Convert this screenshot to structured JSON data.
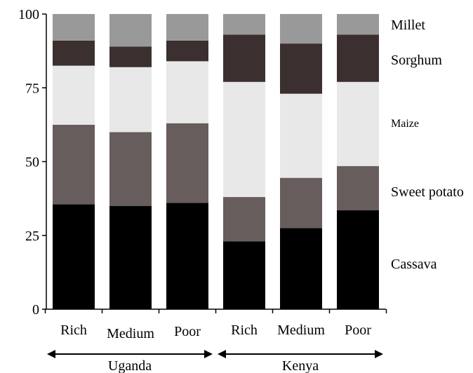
{
  "chart_data": {
    "type": "bar",
    "stacked": true,
    "title": "",
    "xlabel": "",
    "ylabel": "",
    "ylim": [
      0,
      100
    ],
    "yticks": [
      0,
      25,
      50,
      75,
      100
    ],
    "categories": [
      "Rich",
      "Medium",
      "Poor",
      "Rich",
      "Medium",
      "Poor"
    ],
    "groups": [
      {
        "label": "Uganda",
        "categories": [
          0,
          1,
          2
        ]
      },
      {
        "label": "Kenya",
        "categories": [
          3,
          4,
          5
        ]
      }
    ],
    "series": [
      {
        "name": "Cassava",
        "color": "#000000",
        "values": [
          35.5,
          35,
          36,
          23,
          27.5,
          33.5
        ]
      },
      {
        "name": "Sweet potato",
        "color": "#675d5c",
        "values": [
          27,
          25,
          27,
          15,
          17,
          15
        ]
      },
      {
        "name": "Maize",
        "color": "#e8e8e8",
        "values": [
          20,
          22,
          21,
          39,
          28.5,
          28.5
        ]
      },
      {
        "name": "Sorghum",
        "color": "#3b302f",
        "values": [
          8.5,
          7,
          7,
          16,
          17,
          16
        ]
      },
      {
        "name": "Millet",
        "color": "#999999",
        "values": [
          9,
          11,
          9,
          7,
          10,
          7
        ]
      }
    ],
    "legend": {
      "placement": "right"
    }
  }
}
